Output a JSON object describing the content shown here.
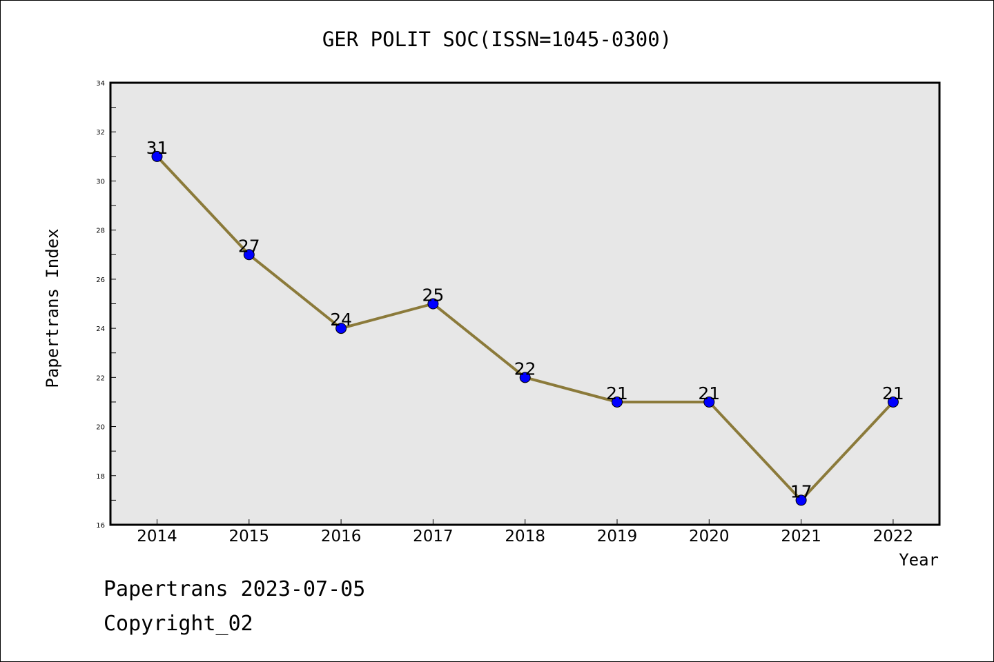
{
  "chart_data": {
    "type": "line",
    "title": "GER POLIT SOC(ISSN=1045-0300)",
    "xlabel": "Year",
    "ylabel": "Papertrans Index",
    "categories": [
      "2014",
      "2015",
      "2016",
      "2017",
      "2018",
      "2019",
      "2020",
      "2021",
      "2022"
    ],
    "series": [
      {
        "values": [
          31,
          27,
          24,
          25,
          22,
          21,
          21,
          17,
          21
        ]
      }
    ],
    "ylim": [
      16,
      34
    ],
    "yticks": [
      16,
      18,
      20,
      22,
      24,
      26,
      28,
      30,
      32,
      34
    ],
    "grid": false,
    "legend": "none",
    "colors": {
      "plot_background": "#e7e7e7",
      "line": "#8b7a3a",
      "marker": "#0000ff"
    }
  },
  "footer": {
    "line1": "Papertrans 2023-07-05",
    "line2": "Copyright_02"
  }
}
